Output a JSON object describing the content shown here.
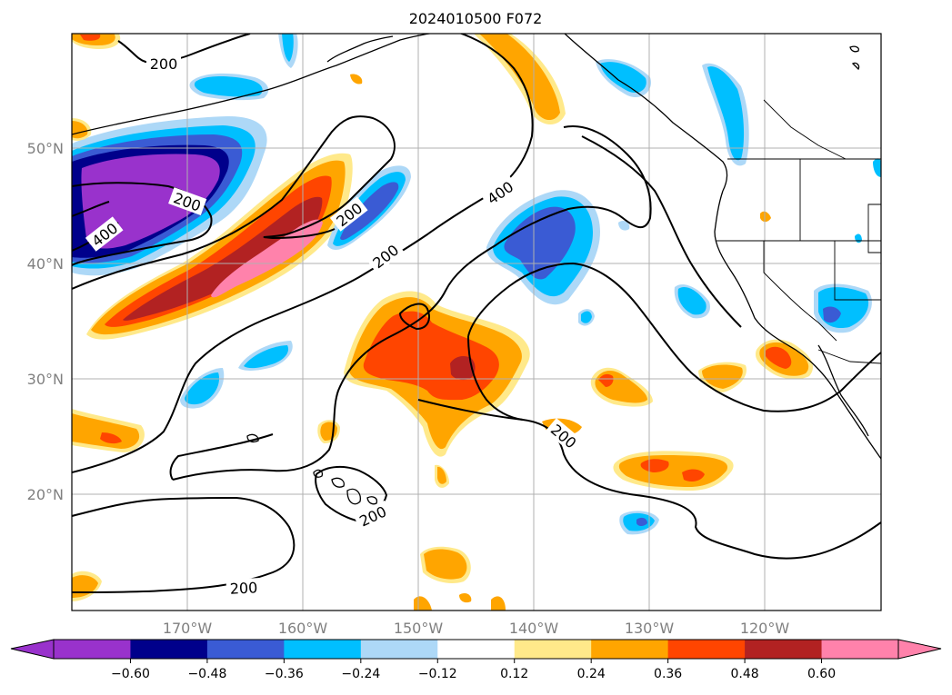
{
  "title": "2024010500 F072",
  "map": {
    "lon_labels": [
      "170°W",
      "160°W",
      "150°W",
      "140°W",
      "130°W",
      "120°W"
    ],
    "lat_labels": [
      "50°N",
      "40°N",
      "30°N",
      "20°N"
    ],
    "gridlines": true
  },
  "contours": {
    "labels": [
      "200",
      "200",
      "400",
      "200",
      "200",
      "400",
      "200",
      "200",
      "200"
    ]
  },
  "colorbar": {
    "ticks": [
      "−0.60",
      "−0.48",
      "−0.36",
      "−0.24",
      "−0.12",
      "0.12",
      "0.24",
      "0.36",
      "0.48",
      "0.60"
    ],
    "colors": [
      "#9932cc",
      "#00008b",
      "#3a5bd4",
      "#00bfff",
      "#add8f7",
      "#ffffff",
      "#ffe98a",
      "#ffa500",
      "#ff4500",
      "#b22222",
      "#ff82ab"
    ],
    "extend": "both"
  }
}
